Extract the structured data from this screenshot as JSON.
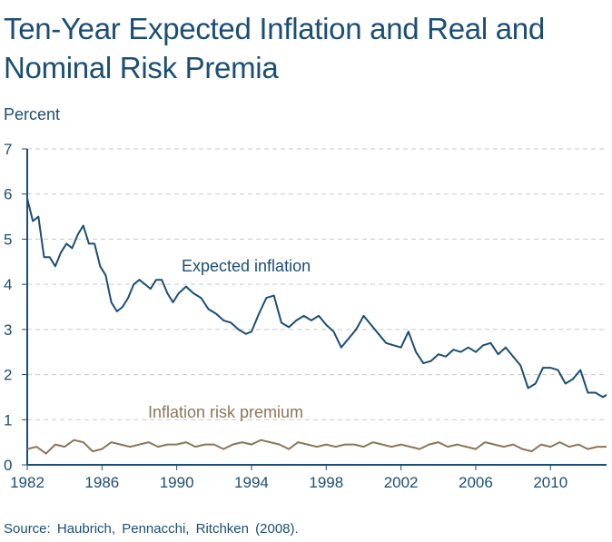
{
  "chart_data": {
    "type": "line",
    "title": "Ten-Year Expected Inflation and Real and Nominal Risk Premia",
    "ylabel": "Percent",
    "source": "Source: Haubrich, Pennacchi, Ritchken (2008).",
    "xlim": [
      1982,
      2013
    ],
    "ylim": [
      0,
      7
    ],
    "x_ticks": [
      1982,
      1986,
      1990,
      1994,
      1998,
      2002,
      2006,
      2010
    ],
    "y_ticks": [
      0,
      1,
      2,
      3,
      4,
      5,
      6,
      7
    ],
    "grid": true,
    "annotations": [
      {
        "text": "Expected inflation",
        "series": "Expected inflation"
      },
      {
        "text": "Inflation risk premium",
        "series": "Inflation risk premium"
      }
    ],
    "series": [
      {
        "name": "Expected inflation",
        "color": "#1b4e74",
        "x": [
          1982.0,
          1982.3,
          1982.6,
          1982.9,
          1983.2,
          1983.5,
          1983.8,
          1984.1,
          1984.4,
          1984.7,
          1985.0,
          1985.3,
          1985.6,
          1985.9,
          1986.2,
          1986.5,
          1986.8,
          1987.1,
          1987.4,
          1987.7,
          1988.0,
          1988.3,
          1988.6,
          1988.9,
          1989.2,
          1989.5,
          1989.8,
          1990.1,
          1990.5,
          1990.9,
          1991.3,
          1991.7,
          1992.1,
          1992.5,
          1992.9,
          1993.3,
          1993.7,
          1994.0,
          1994.4,
          1994.8,
          1995.2,
          1995.6,
          1996.0,
          1996.4,
          1996.8,
          1997.2,
          1997.6,
          1998.0,
          1998.4,
          1998.8,
          1999.2,
          1999.6,
          2000.0,
          2000.4,
          2000.8,
          2001.2,
          2001.6,
          2002.0,
          2002.4,
          2002.8,
          2003.2,
          2003.6,
          2004.0,
          2004.4,
          2004.8,
          2005.2,
          2005.6,
          2006.0,
          2006.4,
          2006.8,
          2007.2,
          2007.6,
          2008.0,
          2008.4,
          2008.8,
          2009.2,
          2009.6,
          2010.0,
          2010.4,
          2010.8,
          2011.2,
          2011.6,
          2012.0,
          2012.4,
          2012.8,
          2013.0
        ],
        "values": [
          5.9,
          5.4,
          5.5,
          4.6,
          4.6,
          4.4,
          4.7,
          4.9,
          4.8,
          5.1,
          5.3,
          4.9,
          4.9,
          4.4,
          4.2,
          3.6,
          3.4,
          3.5,
          3.7,
          4.0,
          4.1,
          4.0,
          3.9,
          4.1,
          4.1,
          3.8,
          3.6,
          3.8,
          3.95,
          3.8,
          3.7,
          3.45,
          3.35,
          3.2,
          3.15,
          3.0,
          2.9,
          2.95,
          3.35,
          3.7,
          3.75,
          3.15,
          3.05,
          3.2,
          3.3,
          3.2,
          3.3,
          3.1,
          2.95,
          2.6,
          2.8,
          3.0,
          3.3,
          3.1,
          2.9,
          2.7,
          2.65,
          2.6,
          2.95,
          2.5,
          2.25,
          2.3,
          2.45,
          2.4,
          2.55,
          2.5,
          2.6,
          2.5,
          2.65,
          2.7,
          2.45,
          2.6,
          2.4,
          2.2,
          1.7,
          1.8,
          2.15,
          2.15,
          2.1,
          1.8,
          1.9,
          2.1,
          1.6,
          1.6,
          1.5,
          1.55
        ]
      },
      {
        "name": "Inflation risk premium",
        "color": "#8e7659",
        "x": [
          1982.0,
          1982.5,
          1983.0,
          1983.5,
          1984.0,
          1984.5,
          1985.0,
          1985.5,
          1986.0,
          1986.5,
          1987.0,
          1987.5,
          1988.0,
          1988.5,
          1989.0,
          1989.5,
          1990.0,
          1990.5,
          1991.0,
          1991.5,
          1992.0,
          1992.5,
          1993.0,
          1993.5,
          1994.0,
          1994.5,
          1995.0,
          1995.5,
          1996.0,
          1996.5,
          1997.0,
          1997.5,
          1998.0,
          1998.5,
          1999.0,
          1999.5,
          2000.0,
          2000.5,
          2001.0,
          2001.5,
          2002.0,
          2002.5,
          2003.0,
          2003.5,
          2004.0,
          2004.5,
          2005.0,
          2005.5,
          2006.0,
          2006.5,
          2007.0,
          2007.5,
          2008.0,
          2008.5,
          2009.0,
          2009.5,
          2010.0,
          2010.5,
          2011.0,
          2011.5,
          2012.0,
          2012.5,
          2013.0
        ],
        "values": [
          0.35,
          0.4,
          0.25,
          0.45,
          0.4,
          0.55,
          0.5,
          0.3,
          0.35,
          0.5,
          0.45,
          0.4,
          0.45,
          0.5,
          0.4,
          0.45,
          0.45,
          0.5,
          0.4,
          0.45,
          0.45,
          0.35,
          0.45,
          0.5,
          0.45,
          0.55,
          0.5,
          0.45,
          0.35,
          0.5,
          0.45,
          0.4,
          0.45,
          0.4,
          0.45,
          0.45,
          0.4,
          0.5,
          0.45,
          0.4,
          0.45,
          0.4,
          0.35,
          0.45,
          0.5,
          0.4,
          0.45,
          0.4,
          0.35,
          0.5,
          0.45,
          0.4,
          0.45,
          0.35,
          0.3,
          0.45,
          0.4,
          0.5,
          0.4,
          0.45,
          0.35,
          0.4,
          0.4
        ]
      }
    ]
  }
}
